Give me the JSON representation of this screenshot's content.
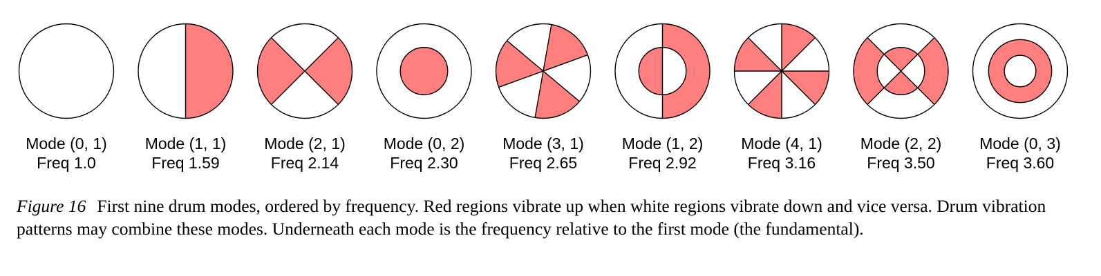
{
  "colors": {
    "red_region": "#ff7f7f",
    "white_region": "#ffffff",
    "outline": "#000000"
  },
  "modes": [
    {
      "name": "Mode (0, 1)",
      "freq": "Freq 1.0",
      "m": 0,
      "n": 1
    },
    {
      "name": "Mode (1, 1)",
      "freq": "Freq 1.59",
      "m": 1,
      "n": 1
    },
    {
      "name": "Mode (2, 1)",
      "freq": "Freq 2.14",
      "m": 2,
      "n": 1
    },
    {
      "name": "Mode (0, 2)",
      "freq": "Freq 2.30",
      "m": 0,
      "n": 2
    },
    {
      "name": "Mode (3, 1)",
      "freq": "Freq 2.65",
      "m": 3,
      "n": 1
    },
    {
      "name": "Mode (1, 2)",
      "freq": "Freq 2.92",
      "m": 1,
      "n": 2
    },
    {
      "name": "Mode (4, 1)",
      "freq": "Freq 3.16",
      "m": 4,
      "n": 1
    },
    {
      "name": "Mode (2, 2)",
      "freq": "Freq 3.50",
      "m": 2,
      "n": 2
    },
    {
      "name": "Mode (0, 3)",
      "freq": "Freq 3.60",
      "m": 0,
      "n": 3
    }
  ],
  "caption": {
    "label": "Figure 16",
    "text": "First nine drum modes, ordered by frequency. Red regions vibrate up when white regions vibrate down and vice versa. Drum vibration patterns may combine these modes. Underneath each mode is the frequency relative to the first mode (the fundamental)."
  }
}
